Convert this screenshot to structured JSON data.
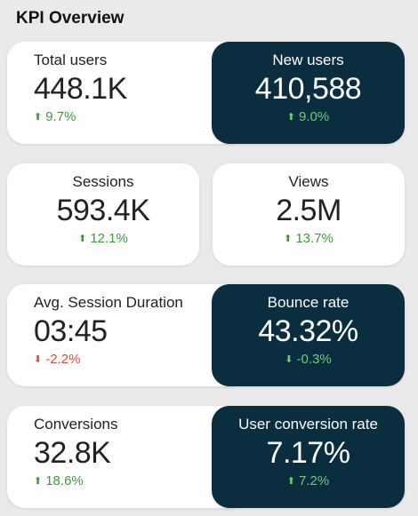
{
  "page": {
    "title": "KPI Overview"
  },
  "colors": {
    "background": "#eaeaea",
    "card_light": "#ffffff",
    "card_dark": "#0b2d40",
    "up_green": "#3e9a3e",
    "down_red": "#e0483d"
  },
  "kpis": [
    {
      "label": "Total users",
      "value": "448.1K",
      "delta": "9.7%",
      "direction": "up",
      "icon": "arrow-up-icon"
    },
    {
      "label": "New users",
      "value": "410,588",
      "delta": "9.0%",
      "direction": "up",
      "icon": "arrow-up-icon"
    },
    {
      "label": "Sessions",
      "value": "593.4K",
      "delta": "12.1%",
      "direction": "up",
      "icon": "arrow-up-icon"
    },
    {
      "label": "Views",
      "value": "2.5M",
      "delta": "13.7%",
      "direction": "up",
      "icon": "arrow-up-icon"
    },
    {
      "label": "Avg. Session Duration",
      "value": "03:45",
      "delta": "-2.2%",
      "direction": "down",
      "icon": "arrow-down-icon"
    },
    {
      "label": "Bounce rate",
      "value": "43.32%",
      "delta": "-0.3%",
      "direction": "down",
      "icon": "arrow-down-icon"
    },
    {
      "label": "Conversions",
      "value": "32.8K",
      "delta": "18.6%",
      "direction": "up",
      "icon": "arrow-up-icon"
    },
    {
      "label": "User conversion rate",
      "value": "7.17%",
      "delta": "7.2%",
      "direction": "up",
      "icon": "arrow-up-icon"
    }
  ]
}
